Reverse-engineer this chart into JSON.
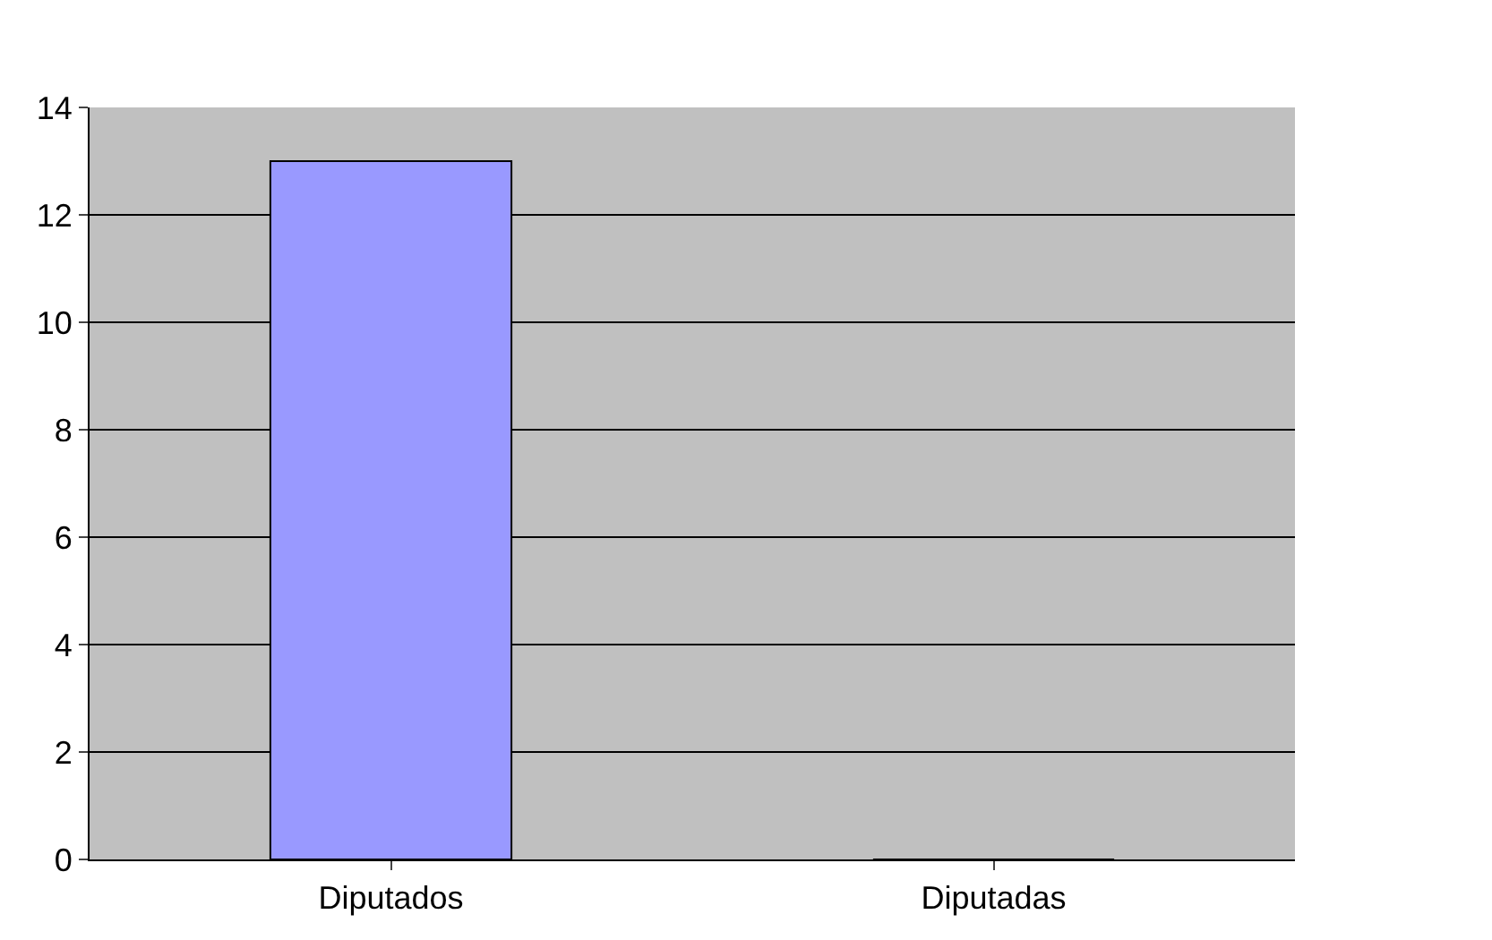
{
  "chart_data": {
    "type": "bar",
    "categories": [
      "Diputados",
      "Diputadas"
    ],
    "values": [
      13,
      0
    ],
    "color": "#9999ff",
    "ylim": [
      0,
      14
    ],
    "yticks": [
      0,
      2,
      4,
      6,
      8,
      10,
      12,
      14
    ],
    "grid": "y"
  }
}
